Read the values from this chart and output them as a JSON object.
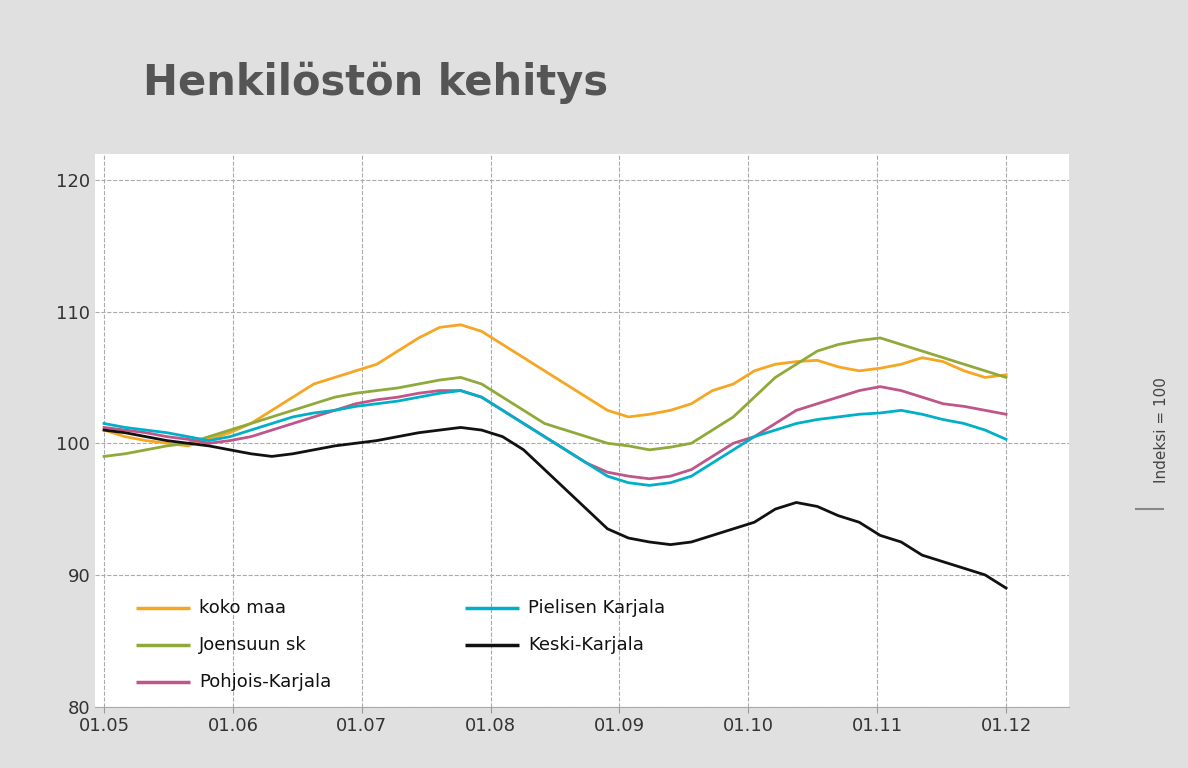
{
  "title": "Henkilöstön kehitys",
  "title_color": "#555555",
  "background_color": "#e0e0e0",
  "plot_background": "#ffffff",
  "ylabel_right": "Indeksi = 100",
  "ylim": [
    80,
    122
  ],
  "yticks": [
    80,
    90,
    100,
    110,
    120
  ],
  "xtick_labels": [
    "01.05",
    "01.06",
    "01.07",
    "01.08",
    "01.09",
    "01.10",
    "01.11",
    "01.12"
  ],
  "series": {
    "koko maa": {
      "color": "#f5a623",
      "linewidth": 2.0,
      "data": [
        101.0,
        100.5,
        100.2,
        100.0,
        99.8,
        100.3,
        100.8,
        101.5,
        102.5,
        103.5,
        104.5,
        105.0,
        105.5,
        106.0,
        107.0,
        108.0,
        108.8,
        109.0,
        108.5,
        107.5,
        106.5,
        105.5,
        104.5,
        103.5,
        102.5,
        102.0,
        102.2,
        102.5,
        103.0,
        104.0,
        104.5,
        105.5,
        106.0,
        106.2,
        106.3,
        105.8,
        105.5,
        105.7,
        106.0,
        106.5,
        106.2,
        105.5,
        105.0,
        105.2
      ]
    },
    "Joensuun sk": {
      "color": "#8faa3a",
      "linewidth": 2.0,
      "data": [
        99.0,
        99.2,
        99.5,
        99.8,
        100.0,
        100.5,
        101.0,
        101.5,
        102.0,
        102.5,
        103.0,
        103.5,
        103.8,
        104.0,
        104.2,
        104.5,
        104.8,
        105.0,
        104.5,
        103.5,
        102.5,
        101.5,
        101.0,
        100.5,
        100.0,
        99.8,
        99.5,
        99.7,
        100.0,
        101.0,
        102.0,
        103.5,
        105.0,
        106.0,
        107.0,
        107.5,
        107.8,
        108.0,
        107.5,
        107.0,
        106.5,
        106.0,
        105.5,
        105.0
      ]
    },
    "Pohjois-Karjala": {
      "color": "#c0558a",
      "linewidth": 2.0,
      "data": [
        101.2,
        101.0,
        100.8,
        100.5,
        100.3,
        100.0,
        100.2,
        100.5,
        101.0,
        101.5,
        102.0,
        102.5,
        103.0,
        103.3,
        103.5,
        103.8,
        104.0,
        104.0,
        103.5,
        102.5,
        101.5,
        100.5,
        99.5,
        98.5,
        97.8,
        97.5,
        97.3,
        97.5,
        98.0,
        99.0,
        100.0,
        100.5,
        101.5,
        102.5,
        103.0,
        103.5,
        104.0,
        104.3,
        104.0,
        103.5,
        103.0,
        102.8,
        102.5,
        102.2
      ]
    },
    "Pielisen Karjala": {
      "color": "#00b0c8",
      "linewidth": 2.0,
      "data": [
        101.5,
        101.2,
        101.0,
        100.8,
        100.5,
        100.2,
        100.5,
        101.0,
        101.5,
        102.0,
        102.3,
        102.5,
        102.8,
        103.0,
        103.2,
        103.5,
        103.8,
        104.0,
        103.5,
        102.5,
        101.5,
        100.5,
        99.5,
        98.5,
        97.5,
        97.0,
        96.8,
        97.0,
        97.5,
        98.5,
        99.5,
        100.5,
        101.0,
        101.5,
        101.8,
        102.0,
        102.2,
        102.3,
        102.5,
        102.2,
        101.8,
        101.5,
        101.0,
        100.3
      ]
    },
    "Keski-Karjala": {
      "color": "#111111",
      "linewidth": 2.0,
      "data": [
        101.0,
        100.8,
        100.5,
        100.2,
        100.0,
        99.8,
        99.5,
        99.2,
        99.0,
        99.2,
        99.5,
        99.8,
        100.0,
        100.2,
        100.5,
        100.8,
        101.0,
        101.2,
        101.0,
        100.5,
        99.5,
        98.0,
        96.5,
        95.0,
        93.5,
        92.8,
        92.5,
        92.3,
        92.5,
        93.0,
        93.5,
        94.0,
        95.0,
        95.5,
        95.2,
        94.5,
        94.0,
        93.0,
        92.5,
        91.5,
        91.0,
        90.5,
        90.0,
        89.0
      ]
    }
  },
  "legend_cols": [
    [
      [
        "koko maa",
        "#f5a623"
      ],
      [
        "Joensuun sk",
        "#8faa3a"
      ],
      [
        "Pohjois-Karjala",
        "#c0558a"
      ]
    ],
    [
      [
        "Pielisen Karjala",
        "#00b0c8"
      ],
      [
        "Keski-Karjala",
        "#111111"
      ]
    ]
  ]
}
